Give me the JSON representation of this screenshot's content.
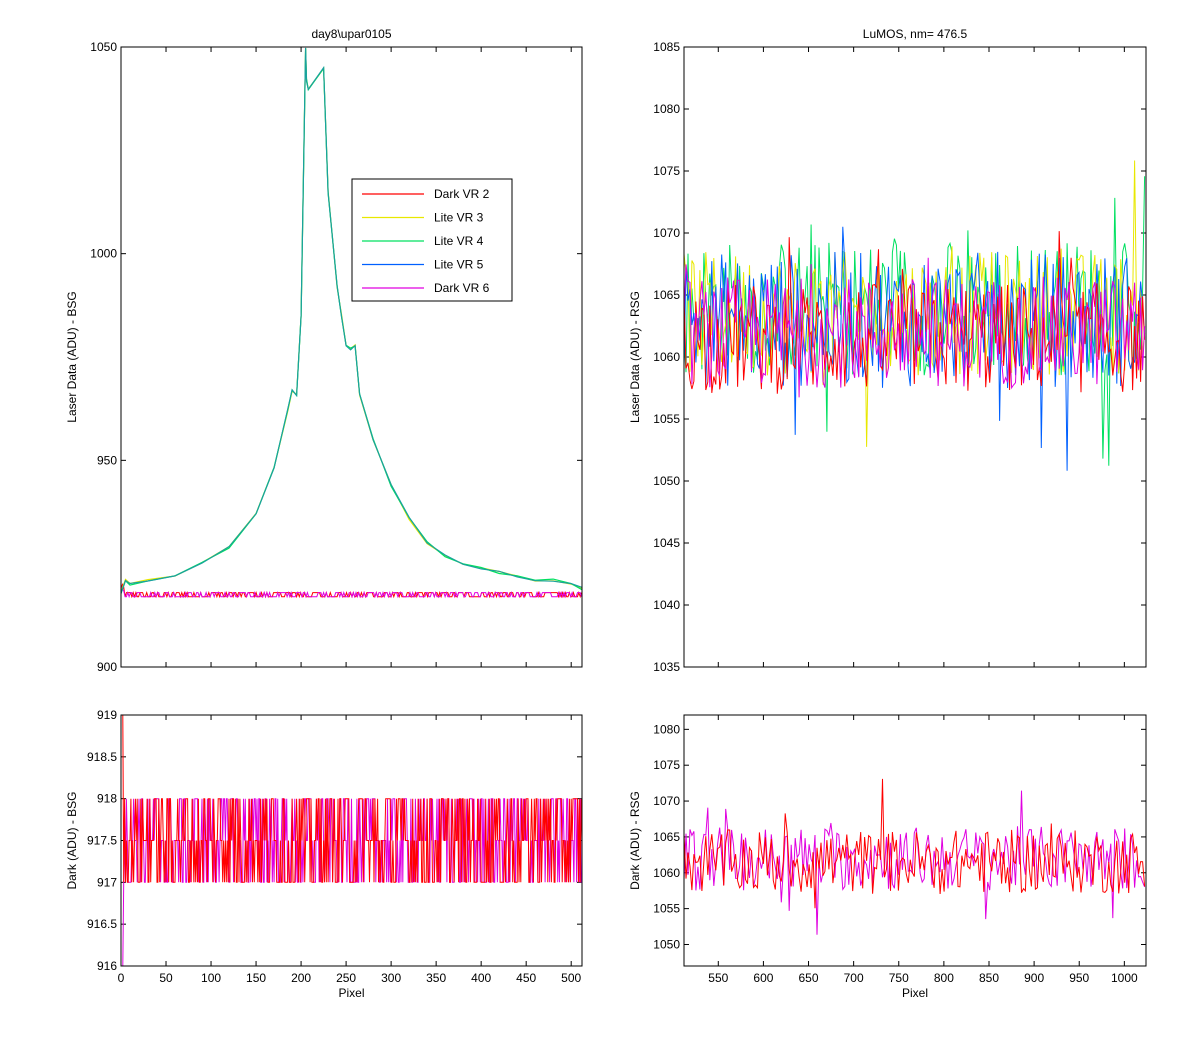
{
  "figure": {
    "background": "#ffffff"
  },
  "colors": {
    "Dark VR 2": "#ff0000",
    "Lite VR 3": "#e8e800",
    "Lite VR 4": "#00e060",
    "Lite VR 5": "#0060ff",
    "Dark VR 6": "#e000e0",
    "overlap_bsg": "#1aa0a0"
  },
  "chart_data": [
    {
      "id": "bsg-laser",
      "type": "line",
      "title": "day8\\upar0105",
      "xlabel": "",
      "ylabel": "Laser Data (ADU) - BSG",
      "xlim": [
        0,
        512
      ],
      "ylim": [
        900,
        1050
      ],
      "xticks": [
        0,
        50,
        100,
        150,
        200,
        250,
        300,
        350,
        400,
        450,
        500
      ],
      "xticklabels": [],
      "yticks": [
        900,
        950,
        1000,
        1050
      ],
      "yticklabels": [
        "900",
        "950",
        "1000",
        "1050"
      ],
      "legend": {
        "placement": "upper-right-inside",
        "entries": [
          "Dark VR 2",
          "Lite VR 3",
          "Lite VR 4",
          "Lite VR 5",
          "Dark VR 6"
        ]
      },
      "series": [
        {
          "name": "Dark VR 2",
          "baseline": 917.5,
          "profile": "flat"
        },
        {
          "name": "Lite VR 3",
          "points": [
            [
              0,
              918
            ],
            [
              5,
              921
            ],
            [
              10,
              920
            ],
            [
              30,
              921
            ],
            [
              60,
              922
            ],
            [
              90,
              925
            ],
            [
              120,
              929
            ],
            [
              150,
              937
            ],
            [
              170,
              948
            ],
            [
              185,
              962
            ],
            [
              190,
              967
            ],
            [
              195,
              966
            ],
            [
              200,
              985
            ],
            [
              205,
              1050
            ],
            [
              206,
              1042
            ],
            [
              208,
              1040
            ],
            [
              225,
              1045
            ],
            [
              230,
              1015
            ],
            [
              240,
              992
            ],
            [
              245,
              985
            ],
            [
              250,
              978
            ],
            [
              255,
              977
            ],
            [
              260,
              978
            ],
            [
              265,
              966
            ],
            [
              280,
              955
            ],
            [
              300,
              944
            ],
            [
              320,
              936
            ],
            [
              340,
              930
            ],
            [
              360,
              927
            ],
            [
              380,
              925
            ],
            [
              400,
              924
            ],
            [
              420,
              923
            ],
            [
              440,
              922
            ],
            [
              460,
              921
            ],
            [
              480,
              921
            ],
            [
              500,
              920
            ],
            [
              512,
              919
            ]
          ]
        },
        {
          "name": "Lite VR 4",
          "points": [
            [
              0,
              918
            ],
            [
              5,
              921
            ],
            [
              10,
              920
            ],
            [
              30,
              921
            ],
            [
              60,
              922
            ],
            [
              90,
              925
            ],
            [
              120,
              929
            ],
            [
              150,
              937
            ],
            [
              170,
              948
            ],
            [
              185,
              962
            ],
            [
              190,
              967
            ],
            [
              195,
              966
            ],
            [
              200,
              985
            ],
            [
              205,
              1050
            ],
            [
              206,
              1042
            ],
            [
              208,
              1040
            ],
            [
              225,
              1045
            ],
            [
              230,
              1015
            ],
            [
              240,
              992
            ],
            [
              245,
              985
            ],
            [
              250,
              978
            ],
            [
              255,
              977
            ],
            [
              260,
              978
            ],
            [
              265,
              966
            ],
            [
              280,
              955
            ],
            [
              300,
              944
            ],
            [
              320,
              936
            ],
            [
              340,
              930
            ],
            [
              360,
              927
            ],
            [
              380,
              925
            ],
            [
              400,
              924
            ],
            [
              420,
              923
            ],
            [
              440,
              922
            ],
            [
              460,
              921
            ],
            [
              480,
              921
            ],
            [
              500,
              920
            ],
            [
              512,
              919
            ]
          ]
        },
        {
          "name": "Lite VR 5",
          "points": [
            [
              0,
              918
            ],
            [
              5,
              921
            ],
            [
              10,
              920
            ],
            [
              30,
              921
            ],
            [
              60,
              922
            ],
            [
              90,
              925
            ],
            [
              120,
              929
            ],
            [
              150,
              937
            ],
            [
              170,
              948
            ],
            [
              185,
              962
            ],
            [
              190,
              967
            ],
            [
              195,
              966
            ],
            [
              200,
              985
            ],
            [
              205,
              1050
            ],
            [
              206,
              1042
            ],
            [
              208,
              1040
            ],
            [
              225,
              1045
            ],
            [
              230,
              1015
            ],
            [
              240,
              992
            ],
            [
              245,
              985
            ],
            [
              250,
              978
            ],
            [
              255,
              977
            ],
            [
              260,
              978
            ],
            [
              265,
              966
            ],
            [
              280,
              955
            ],
            [
              300,
              944
            ],
            [
              320,
              936
            ],
            [
              340,
              930
            ],
            [
              360,
              927
            ],
            [
              380,
              925
            ],
            [
              400,
              924
            ],
            [
              420,
              923
            ],
            [
              440,
              922
            ],
            [
              460,
              921
            ],
            [
              480,
              921
            ],
            [
              500,
              920
            ],
            [
              512,
              919
            ]
          ]
        },
        {
          "name": "Dark VR 6",
          "baseline": 917.5,
          "profile": "flat"
        }
      ]
    },
    {
      "id": "rsg-laser",
      "type": "line",
      "title": "LuMOS, nm= 476.5",
      "xlabel": "",
      "ylabel": "Laser Data (ADU) - RSG",
      "xlim": [
        512,
        1024
      ],
      "ylim": [
        1035,
        1085
      ],
      "xticks": [
        550,
        600,
        650,
        700,
        750,
        800,
        850,
        900,
        950,
        1000
      ],
      "xticklabels": [],
      "yticks": [
        1035,
        1040,
        1045,
        1050,
        1055,
        1060,
        1065,
        1070,
        1075,
        1080,
        1085
      ],
      "yticklabels": [
        "1035",
        "1040",
        "1045",
        "1050",
        "1055",
        "1060",
        "1065",
        "1070",
        "1075",
        "1080",
        "1085"
      ],
      "series": [
        {
          "name": "Dark VR 2",
          "baseline": 1061.5,
          "spread": 4.5
        },
        {
          "name": "Lite VR 3",
          "baseline": 1063.5,
          "spread": 5
        },
        {
          "name": "Lite VR 4",
          "baseline": 1064,
          "spread": 5.5
        },
        {
          "name": "Lite VR 5",
          "baseline": 1063,
          "spread": 5.5
        },
        {
          "name": "Dark VR 6",
          "baseline": 1062,
          "spread": 4.5
        }
      ]
    },
    {
      "id": "bsg-dark",
      "type": "line",
      "title": "",
      "xlabel": "Pixel",
      "ylabel": "Dark (ADU) - BSG",
      "xlim": [
        0,
        512
      ],
      "ylim": [
        916,
        919
      ],
      "xticks": [
        0,
        50,
        100,
        150,
        200,
        250,
        300,
        350,
        400,
        450,
        500
      ],
      "xticklabels": [
        "0",
        "50",
        "100",
        "150",
        "200",
        "250",
        "300",
        "350",
        "400",
        "450",
        "500"
      ],
      "yticks": [
        916,
        916.5,
        917,
        917.5,
        918,
        918.5,
        919
      ],
      "yticklabels": [
        "916",
        "916.5",
        "917",
        "917.5",
        "918",
        "918.5",
        "919"
      ],
      "series": [
        {
          "name": "Dark VR 2",
          "levels": [
            917,
            917.5,
            918
          ]
        },
        {
          "name": "Dark VR 6",
          "levels": [
            917,
            917.5,
            918
          ]
        }
      ]
    },
    {
      "id": "rsg-dark",
      "type": "line",
      "title": "",
      "xlabel": "Pixel",
      "ylabel": "Dark (ADU) - RSG",
      "xlim": [
        512,
        1024
      ],
      "ylim": [
        1047,
        1082
      ],
      "xticks": [
        550,
        600,
        650,
        700,
        750,
        800,
        850,
        900,
        950,
        1000
      ],
      "xticklabels": [
        "550",
        "600",
        "650",
        "700",
        "750",
        "800",
        "850",
        "900",
        "950",
        "1000"
      ],
      "yticks": [
        1050,
        1055,
        1060,
        1065,
        1070,
        1075,
        1080
      ],
      "yticklabels": [
        "1050",
        "1055",
        "1060",
        "1065",
        "1070",
        "1075",
        "1080"
      ],
      "series": [
        {
          "name": "Dark VR 2",
          "baseline": 1061.5,
          "spread": 4.5
        },
        {
          "name": "Dark VR 6",
          "baseline": 1062,
          "spread": 4.5
        }
      ]
    }
  ]
}
